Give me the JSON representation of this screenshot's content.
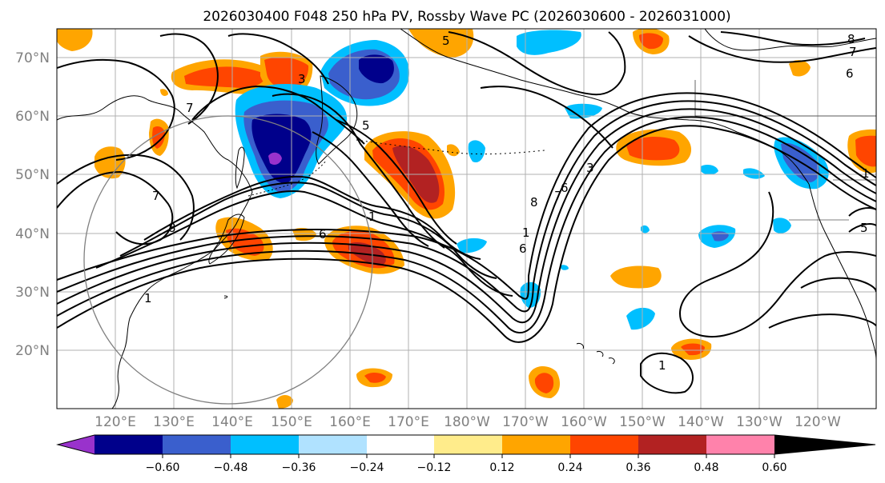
{
  "title": "2026030400 F048 250 hPa PV, Rossby Wave PC (2026030600 - 2026031000)",
  "map": {
    "lat_range": [
      10,
      75
    ],
    "lon_range_east": [
      110,
      250
    ],
    "lat_ticks": [
      "20°N",
      "30°N",
      "40°N",
      "50°N",
      "60°N",
      "70°N"
    ],
    "lat_values": [
      20,
      30,
      40,
      50,
      60,
      70
    ],
    "lon_ticks": [
      "120°E",
      "130°E",
      "140°E",
      "150°E",
      "160°E",
      "170°E",
      "180°W",
      "170°W",
      "160°W",
      "150°W",
      "140°W",
      "130°W",
      "120°W"
    ],
    "lon_values": [
      120,
      130,
      140,
      150,
      160,
      170,
      180,
      190,
      200,
      210,
      220,
      230,
      240
    ]
  },
  "contour_labels": [
    "5",
    "3",
    "7",
    "7",
    "8",
    "5",
    "1",
    "1",
    "6",
    "6",
    "1",
    "8",
    "7",
    "6",
    "3",
    "1",
    "1",
    "8",
    "7",
    "6",
    "5"
  ],
  "colorbar": {
    "ticks": [
      "−0.60",
      "−0.48",
      "−0.36",
      "−0.24",
      "−0.12",
      "0.12",
      "0.24",
      "0.36",
      "0.48",
      "0.60"
    ],
    "colors": [
      "#9932cc",
      "#00008b",
      "#3a5fcd",
      "#00bfff",
      "#b0e2ff",
      "#ffffff",
      "#ffec8b",
      "#ffa500",
      "#ff4500",
      "#b22222",
      "#ff82ab"
    ]
  },
  "colors": {
    "grid": "#b0b0b0",
    "contour": "#000000",
    "coast": "#000000",
    "range_circle": "#808080",
    "tick_text": "#808080"
  }
}
